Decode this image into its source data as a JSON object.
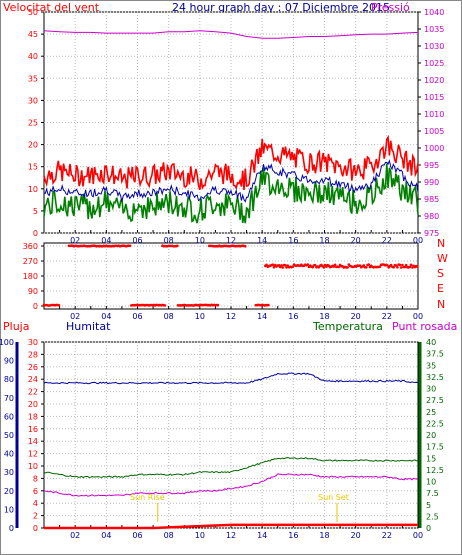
{
  "header": {
    "title": "24 hour graph day : 07 Diciembre 2015",
    "wind_label": "Velocitat del vent",
    "pressure_label": "Pressió"
  },
  "colors": {
    "wind_gust": "#ff0000",
    "wind_avg": "#0000aa",
    "wind_min": "#008000",
    "pressure": "#cc00cc",
    "direction": "#ff0000",
    "humidity": "#000099",
    "temperature": "#006600",
    "dewpoint": "#cc00cc",
    "rain": "#ff0000",
    "sun": "#e6c700"
  },
  "bottom_labels": {
    "rain": "Pluja",
    "humidity": "Humitat",
    "temperature": "Temperatura",
    "dewpoint": "Punt rosada",
    "sunrise": "Sun Rise",
    "sunset": "Sun Set"
  },
  "axes": {
    "x_ticks": [
      "02",
      "04",
      "06",
      "08",
      "10",
      "12",
      "14",
      "16",
      "18",
      "20",
      "22",
      "00"
    ],
    "wind_ticks": [
      "0",
      "5",
      "10",
      "15",
      "20",
      "25",
      "30",
      "35",
      "40",
      "45",
      "50"
    ],
    "pressure_ticks": [
      "975",
      "980",
      "985",
      "990",
      "995",
      "1000",
      "1005",
      "1010",
      "1015",
      "1020",
      "1025",
      "1030",
      "1035",
      "1040"
    ],
    "dir_ticks": [
      "0",
      "90",
      "180",
      "270",
      "360"
    ],
    "dir_letters": [
      "N",
      "W",
      "S",
      "E",
      "N"
    ],
    "rain_ticks": [
      "0",
      "2",
      "4",
      "6",
      "8",
      "10",
      "12",
      "14",
      "16",
      "18",
      "20",
      "22",
      "24",
      "26",
      "28",
      "30"
    ],
    "hum_ticks": [
      "0",
      "10",
      "20",
      "30",
      "40",
      "50",
      "60",
      "70",
      "80",
      "90",
      "100"
    ],
    "temp_ticks": [
      "0",
      "2.5",
      "5",
      "7.5",
      "10",
      "12.5",
      "15",
      "17.5",
      "20",
      "22.5",
      "25",
      "27.5",
      "30",
      "32.5",
      "35",
      "37.5",
      "40"
    ]
  },
  "chart_data": [
    {
      "type": "line",
      "title": "24 hour graph day : 07 Diciembre 2015",
      "ylim_left": [
        0,
        50
      ],
      "ylim_right": [
        975,
        1040
      ],
      "x_hours": [
        0,
        1,
        2,
        3,
        4,
        5,
        6,
        7,
        8,
        9,
        10,
        11,
        12,
        13,
        14,
        15,
        16,
        17,
        18,
        19,
        20,
        21,
        22,
        23,
        24
      ],
      "series": [
        {
          "name": "Velocitat del vent",
          "values": [
            13,
            14,
            13,
            13,
            14,
            12,
            13,
            13,
            14,
            13,
            12,
            14,
            13,
            12,
            19,
            18,
            17,
            16,
            16,
            15,
            14,
            15,
            20,
            17,
            14
          ]
        },
        {
          "name": "Pressió",
          "values": [
            1034.5,
            1034.2,
            1034.0,
            1034.0,
            1033.8,
            1033.8,
            1033.8,
            1033.8,
            1034.2,
            1034.2,
            1034.5,
            1034.2,
            1033.8,
            1032.8,
            1032.3,
            1032.3,
            1032.5,
            1032.8,
            1032.8,
            1033.0,
            1033.3,
            1033.5,
            1033.5,
            1033.8,
            1034.0
          ]
        }
      ]
    },
    {
      "type": "scatter",
      "ylim": [
        0,
        360
      ],
      "segments": [
        {
          "from": 0,
          "to": 1.0,
          "value": 5
        },
        {
          "from": 1.6,
          "to": 5.6,
          "value": 360
        },
        {
          "from": 5.6,
          "to": 7.8,
          "value": 5
        },
        {
          "from": 7.6,
          "to": 8.6,
          "value": 360
        },
        {
          "from": 8.6,
          "to": 11.2,
          "value": 5
        },
        {
          "from": 10.6,
          "to": 13.0,
          "value": 360
        },
        {
          "from": 13.6,
          "to": 14.4,
          "value": 5
        },
        {
          "from": 14.2,
          "to": 24,
          "value": 240
        }
      ]
    },
    {
      "type": "line",
      "ylim_rain": [
        0,
        30
      ],
      "ylim_hum": [
        0,
        100
      ],
      "ylim_temp": [
        0,
        40
      ],
      "x_hours": [
        0,
        1,
        2,
        3,
        4,
        5,
        6,
        7,
        8,
        9,
        10,
        11,
        12,
        13,
        14,
        15,
        16,
        17,
        18,
        19,
        20,
        21,
        22,
        23,
        24
      ],
      "series": [
        {
          "name": "Humitat",
          "values": [
            78,
            78,
            78,
            78,
            78,
            78,
            78,
            78,
            78,
            78,
            78,
            78,
            78,
            78,
            80,
            83,
            83,
            83,
            79,
            79,
            79,
            79,
            79,
            79,
            78
          ]
        },
        {
          "name": "Temperatura",
          "values": [
            12,
            11.5,
            11,
            11,
            11,
            11,
            11.5,
            11.5,
            11.5,
            11.5,
            12,
            12,
            12,
            13,
            14,
            15,
            15,
            15,
            14.5,
            14.5,
            14.5,
            14.5,
            14.5,
            14.5,
            14.5
          ]
        },
        {
          "name": "Punt rosada",
          "values": [
            8,
            7.5,
            7,
            7,
            7,
            7,
            7.5,
            7.5,
            7.5,
            7.5,
            8,
            8,
            8.5,
            9,
            10,
            11.5,
            11.5,
            11.5,
            11,
            11,
            11,
            11,
            11,
            10.5,
            10.5
          ]
        },
        {
          "name": "Pluja",
          "values": [
            0,
            0,
            0,
            0,
            0,
            0,
            0,
            0,
            0.1,
            0.2,
            0.3,
            0.4,
            0.5,
            0.5,
            0.5,
            0.5,
            0.5,
            0.5,
            0.5,
            0.5,
            0.5,
            0.5,
            0.5,
            0.5,
            0.5
          ]
        }
      ],
      "sunrise_hour": 7.3,
      "sunset_hour": 18.8
    }
  ]
}
